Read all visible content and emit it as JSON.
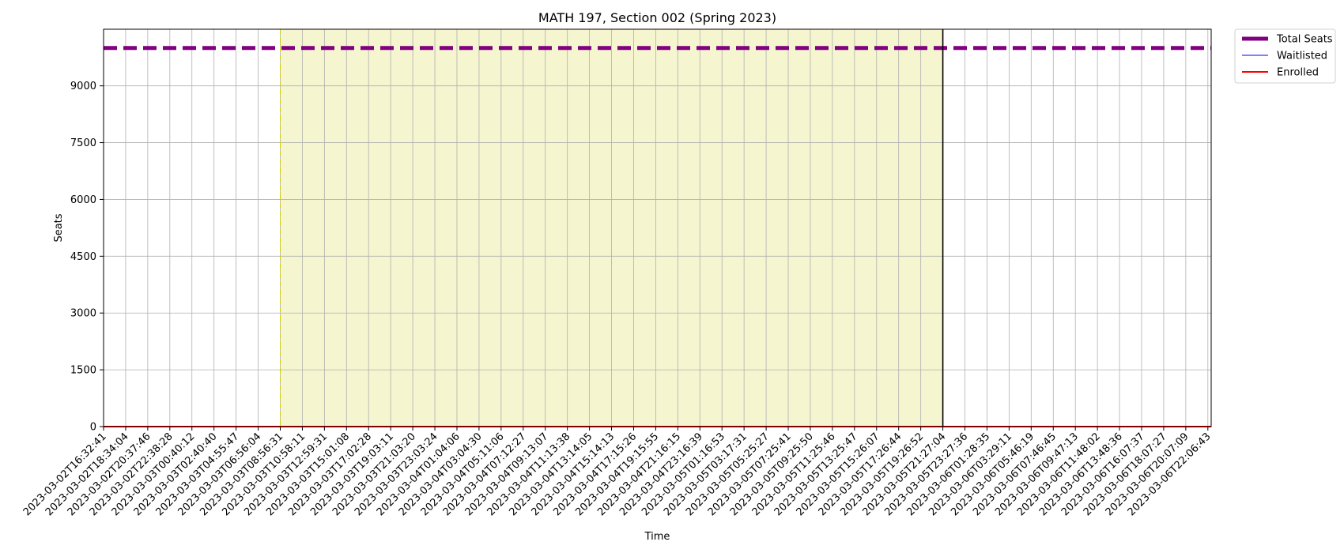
{
  "chart_data": {
    "type": "line",
    "title": "MATH 197, Section 002 (Spring 2023)",
    "xlabel": "Time",
    "ylabel": "Seats",
    "ylim": [
      0,
      10000
    ],
    "yticks": [
      0,
      1500,
      3000,
      4500,
      6000,
      7500,
      9000
    ],
    "grid": true,
    "legend_position": "outside-top-right",
    "x": [
      "2023-03-02T16:32:41",
      "2023-03-02T18:34:04",
      "2023-03-02T20:37:46",
      "2023-03-02T22:38:28",
      "2023-03-03T00:40:12",
      "2023-03-03T02:40:40",
      "2023-03-03T04:55:47",
      "2023-03-03T06:56:04",
      "2023-03-03T08:56:31",
      "2023-03-03T10:58:11",
      "2023-03-03T12:59:31",
      "2023-03-03T15:01:08",
      "2023-03-03T17:02:28",
      "2023-03-03T19:03:11",
      "2023-03-03T21:03:20",
      "2023-03-03T23:03:24",
      "2023-03-04T01:04:06",
      "2023-03-04T03:04:30",
      "2023-03-04T05:11:06",
      "2023-03-04T07:12:27",
      "2023-03-04T09:13:07",
      "2023-03-04T11:13:38",
      "2023-03-04T13:14:05",
      "2023-03-04T15:14:13",
      "2023-03-04T17:15:26",
      "2023-03-04T19:15:55",
      "2023-03-04T21:16:15",
      "2023-03-04T23:16:39",
      "2023-03-05T01:16:53",
      "2023-03-05T03:17:31",
      "2023-03-05T05:25:27",
      "2023-03-05T07:25:41",
      "2023-03-05T09:25:50",
      "2023-03-05T11:25:46",
      "2023-03-05T13:25:47",
      "2023-03-05T15:26:07",
      "2023-03-05T17:26:44",
      "2023-03-05T19:26:52",
      "2023-03-05T21:27:04",
      "2023-03-05T23:27:36",
      "2023-03-06T01:28:35",
      "2023-03-06T03:29:11",
      "2023-03-06T05:46:19",
      "2023-03-06T07:46:45",
      "2023-03-06T09:47:13",
      "2023-03-06T11:48:02",
      "2023-03-06T13:48:36",
      "2023-03-06T16:07:37",
      "2023-03-06T18:07:27",
      "2023-03-06T20:07:09",
      "2023-03-06T22:06:43"
    ],
    "series": [
      {
        "name": "Total Seats",
        "value": 10000,
        "color": "#800080",
        "style": "dashed-thick"
      },
      {
        "name": "Waitlisted",
        "value": 0,
        "color": "#3333ff",
        "style": "solid-thin"
      },
      {
        "name": "Enrolled",
        "value": 0,
        "color": "#ff0000",
        "style": "solid"
      }
    ],
    "shaded_region": {
      "start": "2023-03-03T08:56:31",
      "end": "2023-03-05T21:27:04",
      "color": "#f5f5d0",
      "edge_color": "#cccc00"
    },
    "vertical_marker": {
      "x": "2023-03-05T21:27:04",
      "color": "#000000"
    }
  }
}
